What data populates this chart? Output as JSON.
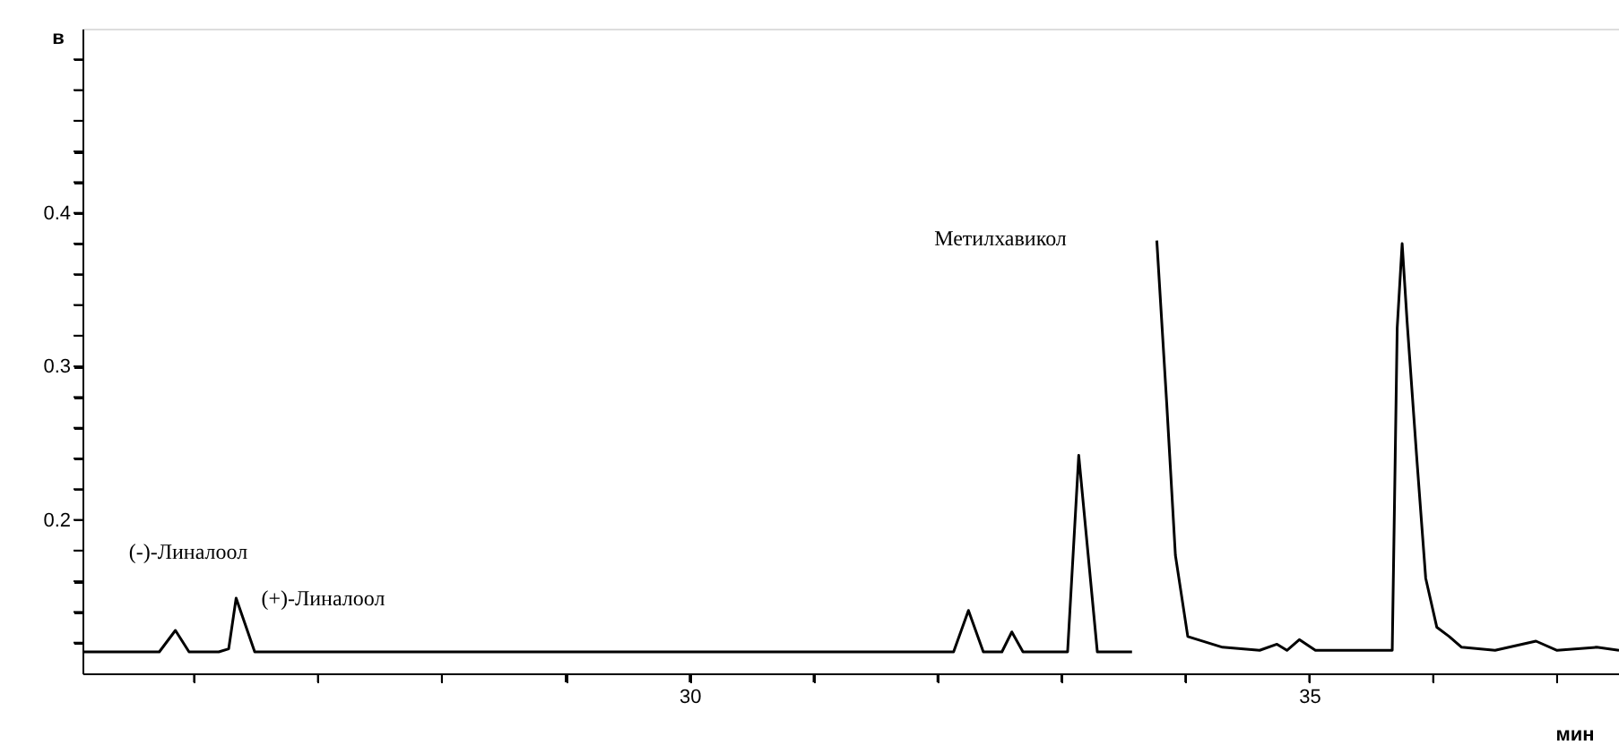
{
  "chart_data": {
    "type": "line",
    "xlabel": "мин",
    "ylabel": "в",
    "x": [
      25.1,
      25.72,
      25.85,
      25.96,
      26.2,
      26.28,
      26.34,
      26.49,
      27.0,
      28.0,
      29.0,
      30.0,
      31.0,
      32.13,
      32.25,
      32.37,
      32.52,
      32.6,
      32.69,
      33.05,
      33.14,
      33.29,
      33.57,
      33.59,
      33.69,
      33.77,
      33.85,
      33.92,
      34.02,
      34.3,
      34.6,
      34.74,
      34.82,
      34.92,
      35.05,
      35.5,
      35.67,
      35.71,
      35.75,
      35.79,
      35.87,
      35.94,
      36.03,
      36.13,
      36.23,
      36.5,
      36.83,
      37.0,
      37.32,
      37.5
    ],
    "series": [
      {
        "color": "#000000",
        "values": [
          0.114,
          0.114,
          0.128,
          0.114,
          0.114,
          0.116,
          0.149,
          0.114,
          0.114,
          0.114,
          0.114,
          0.114,
          0.114,
          0.114,
          0.141,
          0.114,
          0.114,
          0.127,
          0.114,
          0.114,
          0.242,
          0.114,
          0.114,
          null,
          null,
          0.382,
          0.276,
          0.177,
          0.124,
          0.117,
          0.115,
          0.119,
          0.115,
          0.122,
          0.115,
          0.115,
          0.115,
          0.325,
          0.38,
          0.329,
          0.238,
          0.162,
          0.13,
          0.124,
          0.117,
          0.115,
          0.121,
          0.115,
          0.117,
          0.115
        ]
      }
    ],
    "xlim": [
      25.1,
      37.5
    ],
    "ylim": [
      0.1,
      0.52
    ],
    "xticks": [
      {
        "value": 26,
        "label": null
      },
      {
        "value": 27,
        "label": null
      },
      {
        "value": 28,
        "label": null
      },
      {
        "value": 29,
        "label": null
      },
      30,
      {
        "value": 31,
        "label": null
      },
      {
        "value": 32,
        "label": null
      },
      {
        "value": 33,
        "label": null
      },
      {
        "value": 34,
        "label": null
      },
      35,
      {
        "value": 36,
        "label": null
      },
      {
        "value": 37,
        "label": null
      }
    ],
    "yticks": [
      {
        "value": 0.12,
        "label": null
      },
      {
        "value": 0.14,
        "label": null
      },
      {
        "value": 0.16,
        "label": null
      },
      {
        "value": 0.18,
        "label": null
      },
      0.2,
      {
        "value": 0.22,
        "label": null
      },
      {
        "value": 0.24,
        "label": null
      },
      {
        "value": 0.26,
        "label": null
      },
      {
        "value": 0.28,
        "label": null
      },
      0.3,
      {
        "value": 0.32,
        "label": null
      },
      {
        "value": 0.34,
        "label": null
      },
      {
        "value": 0.36,
        "label": null
      },
      {
        "value": 0.38,
        "label": null
      },
      0.4,
      {
        "value": 0.42,
        "label": null
      },
      {
        "value": 0.44,
        "label": null
      },
      {
        "value": 0.46,
        "label": null
      },
      {
        "value": 0.48,
        "label": null
      },
      {
        "value": 0.5,
        "label": null
      }
    ],
    "annotations": [
      "(-)-Линалоол",
      {
        "text": "(+)-Линалоол",
        "x": 26.34,
        "y": 0.149
      },
      "Метилхавикол"
    ],
    "grid": false,
    "line_style": "solid",
    "marker": "none"
  }
}
